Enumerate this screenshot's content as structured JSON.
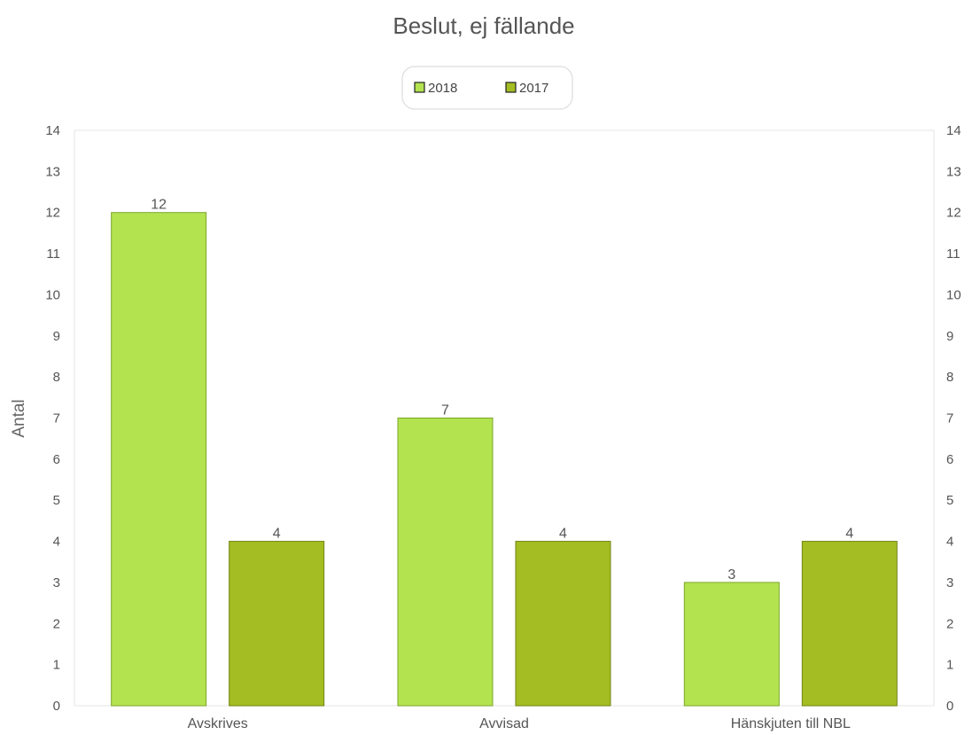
{
  "chart_data": {
    "type": "bar",
    "title": "Beslut, ej fällande",
    "ylabel": "Antal",
    "xlabel": "",
    "categories": [
      "Avskrives",
      "Avvisad",
      "Hänskjuten till NBL"
    ],
    "series": [
      {
        "name": "2018",
        "values": [
          12,
          7,
          3
        ],
        "color": "#b3e34f",
        "stroke": "#7ea52a"
      },
      {
        "name": "2017",
        "values": [
          4,
          4,
          4
        ],
        "color": "#a4bd22",
        "stroke": "#6f8412"
      }
    ],
    "ylim": [
      0,
      14
    ],
    "yticks": [
      0,
      1,
      2,
      3,
      4,
      5,
      6,
      7,
      8,
      9,
      10,
      11,
      12,
      13,
      14
    ],
    "secondary_y_axis": true,
    "legend_position": "top-center",
    "grid": false,
    "data_labels": true
  }
}
